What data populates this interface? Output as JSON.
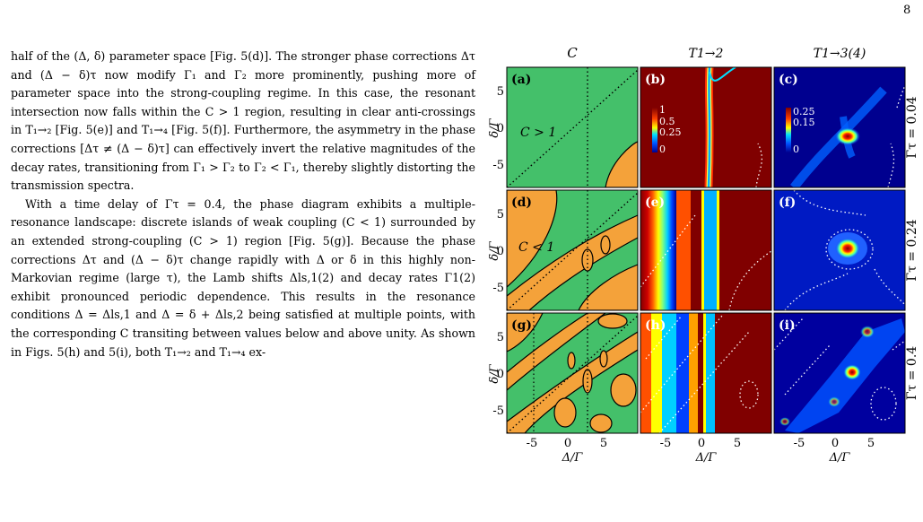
{
  "page": {
    "number": "8"
  },
  "body": {
    "paragraphs": [
      "half of the (Δ, δ) parameter space [Fig. 5(d)]. The stronger phase corrections Δτ and (Δ − δ)τ now modify Γ₁ and Γ₂ more prominently, pushing more of parameter space into the strong-coupling regime. In this case, the resonant intersection now falls within the C > 1 region, resulting in clear anti-crossings in T₁→₂ [Fig. 5(e)] and T₁→₄ [Fig. 5(f)]. Furthermore, the asymmetry in the phase corrections [Δτ ≠ (Δ − δ)τ] can effectively invert the relative magnitudes of the decay rates, transitioning from Γ₁ > Γ₂ to Γ₂ < Γ₁, thereby slightly distorting the transmission spectra.",
      "With a time delay of Γτ = 0.4, the phase diagram exhibits a multiple-resonance landscape: discrete islands of weak coupling (C < 1) surrounded by an extended strong-coupling (C > 1) region [Fig. 5(g)]. Because the phase corrections Δτ and (Δ − δ)τ change rapidly with Δ or δ in this highly non-Markovian regime (large τ), the Lamb shifts Δls,1(2) and decay rates Γ1(2) exhibit pronounced periodic dependence. This results in the resonance conditions Δ = Δls,1 and Δ = δ + Δls,2 being satisfied at multiple points, with the corresponding C transiting between values below and above unity. As shown in Figs. 5(h) and 5(i), both T₁→₂ and T₁→₄ ex-"
    ]
  },
  "figure": {
    "column_titles": [
      "C",
      "T1→2",
      "T1→3(4)"
    ],
    "row_labels": [
      "Γτ = 0.04",
      "Γτ = 0.24",
      "Γτ = 0.4"
    ],
    "panel_labels": [
      "(a)",
      "(b)",
      "(c)",
      "(d)",
      "(e)",
      "(f)",
      "(g)",
      "(h)",
      "(i)"
    ],
    "region_labels": {
      "a": "C > 1",
      "d": "C < 1"
    },
    "colorbar_b": [
      "1",
      "0.5",
      "0.25",
      "0"
    ],
    "colorbar_c": [
      "0.25",
      "0.15",
      "0"
    ],
    "y_label": "δ/Γ",
    "y_ticks": [
      "5",
      "0",
      "-5"
    ],
    "x_label": "Δ/Γ",
    "x_ticks": [
      "-5",
      "0",
      "5"
    ],
    "colors": {
      "strong": "#44c06a",
      "weak": "#f4a23a",
      "jet_low": "#00008f",
      "jet_high": "#800000"
    }
  }
}
